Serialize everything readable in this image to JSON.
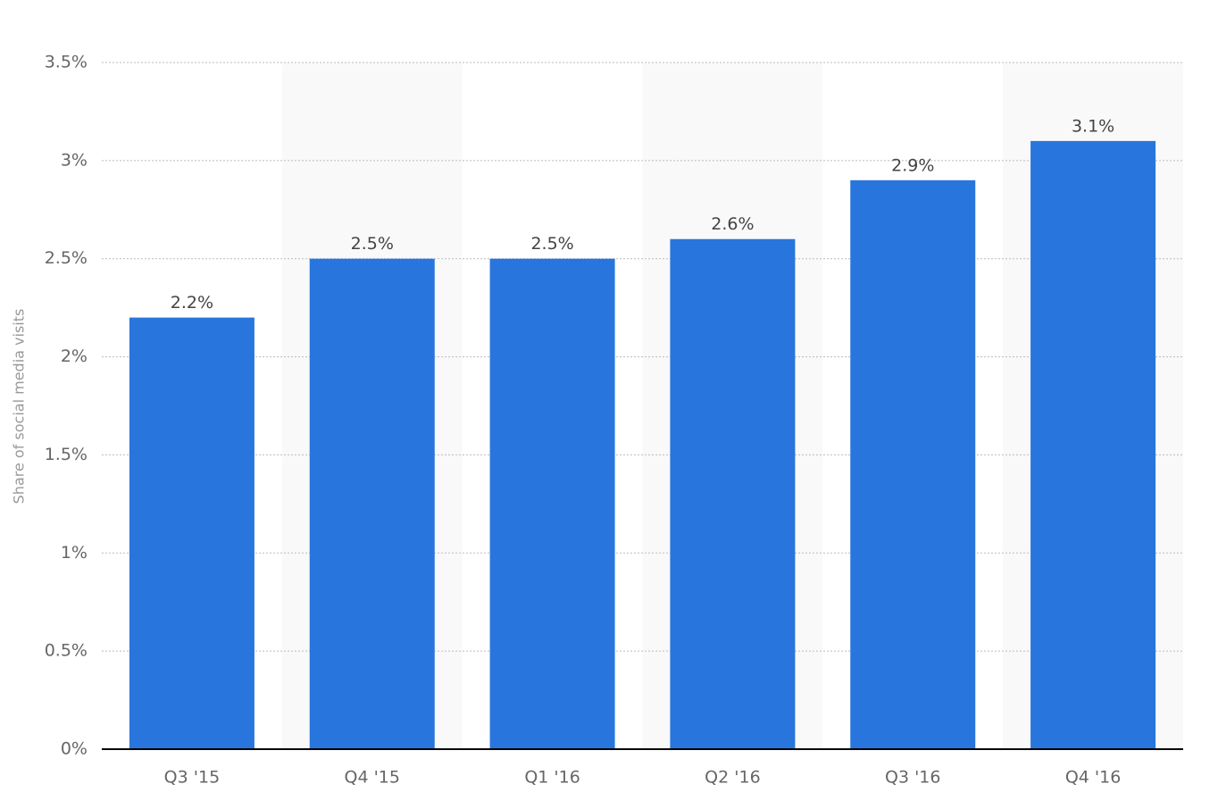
{
  "chart_data": {
    "type": "bar",
    "y_label": "Share of social media visits",
    "categories": [
      "Q3 '15",
      "Q4 '15",
      "Q1 '16",
      "Q2 '16",
      "Q3 '16",
      "Q4 '16"
    ],
    "values": [
      2.2,
      2.5,
      2.5,
      2.6,
      2.9,
      3.1
    ],
    "value_labels": [
      "2.2%",
      "2.5%",
      "2.5%",
      "2.6%",
      "2.9%",
      "3.1%"
    ],
    "color": "#2876dd",
    "ylim": [
      0,
      3.5
    ],
    "yticks": [
      {
        "value": 0,
        "label": "0%"
      },
      {
        "value": 0.5,
        "label": "0.5%"
      },
      {
        "value": 1,
        "label": "1%"
      },
      {
        "value": 1.5,
        "label": "1.5%"
      },
      {
        "value": 2,
        "label": "2%"
      },
      {
        "value": 2.5,
        "label": "2.5%"
      },
      {
        "value": 3,
        "label": "3%"
      },
      {
        "value": 3.5,
        "label": "3.5%"
      }
    ],
    "grid": true
  }
}
